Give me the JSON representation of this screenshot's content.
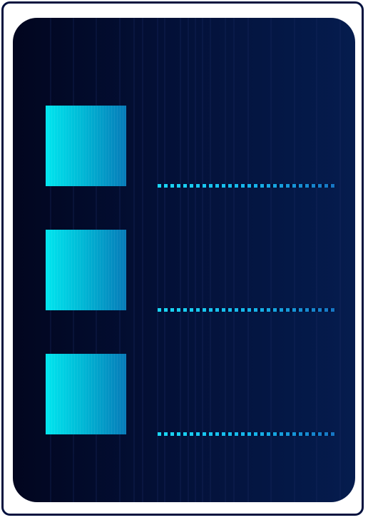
{
  "colors": {
    "frame_border": "#04123f",
    "panel_dark": "#02061f",
    "panel_light": "#051c4e",
    "thumb_start": "#00e6ef",
    "thumb_end": "#067ab8",
    "dots_start": "#1ad8f5",
    "dots_end": "#1675c4"
  },
  "rows": [
    {
      "placeholder": "image-placeholder",
      "text_line": "dotted-line"
    },
    {
      "placeholder": "image-placeholder",
      "text_line": "dotted-line"
    },
    {
      "placeholder": "image-placeholder",
      "text_line": "dotted-line"
    }
  ]
}
